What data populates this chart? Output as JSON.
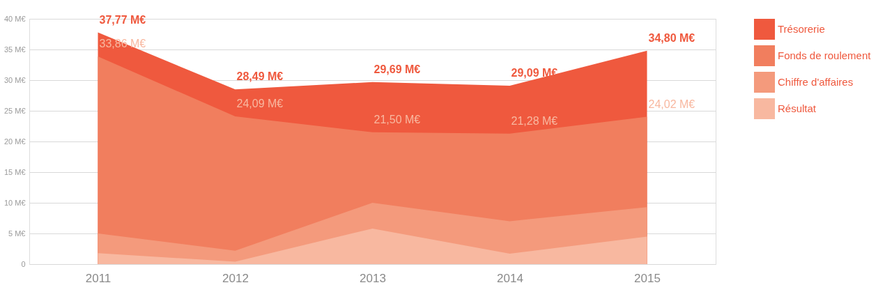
{
  "chart_data": {
    "type": "area",
    "categories": [
      "2011",
      "2012",
      "2013",
      "2014",
      "2015"
    ],
    "ylim": [
      0,
      40
    ],
    "yticks": [
      {
        "value": 0,
        "label": "0"
      },
      {
        "value": 5,
        "label": "5 M€"
      },
      {
        "value": 10,
        "label": "10 M€"
      },
      {
        "value": 15,
        "label": "15 M€"
      },
      {
        "value": 20,
        "label": "20 M€"
      },
      {
        "value": 25,
        "label": "25 M€"
      },
      {
        "value": 30,
        "label": "30 M€"
      },
      {
        "value": 35,
        "label": "35 M€"
      },
      {
        "value": 40,
        "label": "40 M€"
      }
    ],
    "grid": "y",
    "legend": "right",
    "series": [
      {
        "name": "Trésorerie",
        "color": "#ef593e",
        "values": [
          37.77,
          28.49,
          29.69,
          29.09,
          34.8
        ],
        "value_labels": [
          "37,77 M€",
          "28,49 M€",
          "29,69 M€",
          "29,09 M€",
          "34,80 M€"
        ]
      },
      {
        "name": "Fonds de roulement",
        "color": "#f17e5e",
        "values": [
          33.86,
          24.09,
          21.5,
          21.28,
          24.02
        ],
        "value_labels": [
          "33,86 M€",
          "24,09 M€",
          "21,50 M€",
          "21,28 M€",
          "24,02 M€"
        ]
      },
      {
        "name": "Chiffre d'affaires",
        "color": "#f49a7c",
        "values": [
          5.0,
          2.2,
          10.0,
          7.0,
          9.3
        ]
      },
      {
        "name": "Résultat",
        "color": "#f8b8a0",
        "values": [
          1.8,
          0.4,
          5.8,
          1.7,
          4.5
        ]
      }
    ]
  }
}
